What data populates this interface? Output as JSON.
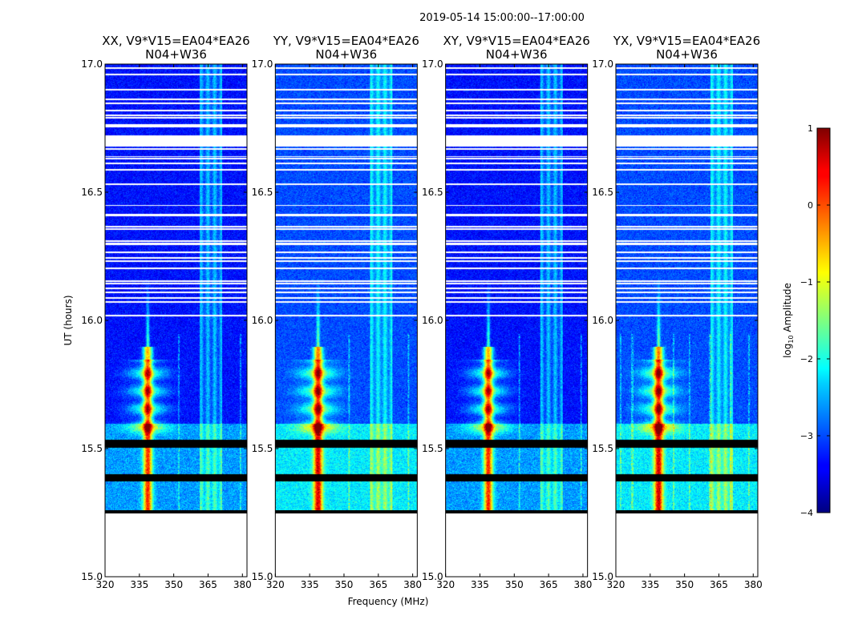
{
  "figure": {
    "suptitle": "2019-05-14  15:00:00--17:00:00",
    "xlabel": "Frequency (MHz)",
    "ylabel": "UT (hours)",
    "colorbar": {
      "label_prefix": "log",
      "label_sub": "10",
      "label_suffix": " Amplitude",
      "ticks": [
        {
          "value": 1,
          "label": "1"
        },
        {
          "value": 0,
          "label": "0"
        },
        {
          "value": -1,
          "label": "−1"
        },
        {
          "value": -2,
          "label": "−2"
        },
        {
          "value": -3,
          "label": "−3"
        },
        {
          "value": -4,
          "label": "−4"
        }
      ],
      "range": [
        -4,
        1
      ],
      "colormap": "jet"
    }
  },
  "chart_data": [
    {
      "type": "heatmap",
      "pol": "XX",
      "title_line1": "XX, V9*V15=EA04*EA26",
      "title_line2": "N04+W36",
      "xlim": [
        320,
        382
      ],
      "ylim": [
        15.0,
        17.0
      ],
      "xticks": [
        {
          "value": 320,
          "label": "320"
        },
        {
          "value": 335,
          "label": "335"
        },
        {
          "value": 350,
          "label": "350"
        },
        {
          "value": 365,
          "label": "365"
        },
        {
          "value": 380,
          "label": "380"
        }
      ],
      "yticks": [
        {
          "value": 15.0,
          "label": "15.0"
        },
        {
          "value": 15.5,
          "label": "15.5"
        },
        {
          "value": 16.0,
          "label": "16.0"
        },
        {
          "value": 16.5,
          "label": "16.5"
        },
        {
          "value": 17.0,
          "label": "17.0"
        }
      ],
      "data_start_ut": 15.26,
      "background_log_amp": -3.3,
      "rfi_band_mhz": [
        361,
        371
      ],
      "strong_rfi_mhz": 338.5,
      "minor_rfi_mhz": [
        352,
        379
      ],
      "lower_section_log_amp": -2.6,
      "flagged_ut_ranges": [
        [
          15.375,
          15.4
        ],
        [
          15.505,
          15.535
        ]
      ]
    },
    {
      "type": "heatmap",
      "pol": "YY",
      "title_line1": "YY, V9*V15=EA04*EA26",
      "title_line2": "N04+W36",
      "xlim": [
        320,
        382
      ],
      "ylim": [
        15.0,
        17.0
      ],
      "xticks": [
        {
          "value": 320,
          "label": "320"
        },
        {
          "value": 335,
          "label": "335"
        },
        {
          "value": 350,
          "label": "350"
        },
        {
          "value": 365,
          "label": "365"
        },
        {
          "value": 380,
          "label": "380"
        }
      ],
      "yticks": [
        {
          "value": 15.0,
          "label": "15.0"
        },
        {
          "value": 15.5,
          "label": "15.5"
        },
        {
          "value": 16.0,
          "label": "16.0"
        },
        {
          "value": 16.5,
          "label": "16.5"
        },
        {
          "value": 17.0,
          "label": "17.0"
        }
      ],
      "data_start_ut": 15.26,
      "background_log_amp": -3.0,
      "rfi_band_mhz": [
        361,
        371
      ],
      "strong_rfi_mhz": 338.5,
      "minor_rfi_mhz": [
        352,
        378
      ],
      "lower_section_log_amp": -2.2,
      "flagged_ut_ranges": [
        [
          15.375,
          15.4
        ],
        [
          15.505,
          15.535
        ]
      ]
    },
    {
      "type": "heatmap",
      "pol": "XY",
      "title_line1": "XY, V9*V15=EA04*EA26",
      "title_line2": "N04+W36",
      "xlim": [
        320,
        382
      ],
      "ylim": [
        15.0,
        17.0
      ],
      "xticks": [
        {
          "value": 320,
          "label": "320"
        },
        {
          "value": 335,
          "label": "335"
        },
        {
          "value": 350,
          "label": "350"
        },
        {
          "value": 365,
          "label": "365"
        },
        {
          "value": 380,
          "label": "380"
        }
      ],
      "yticks": [
        {
          "value": 15.0,
          "label": "15.0"
        },
        {
          "value": 15.5,
          "label": "15.5"
        },
        {
          "value": 16.0,
          "label": "16.0"
        },
        {
          "value": 16.5,
          "label": "16.5"
        },
        {
          "value": 17.0,
          "label": "17.0"
        }
      ],
      "data_start_ut": 15.26,
      "background_log_amp": -3.3,
      "rfi_band_mhz": [
        361,
        371
      ],
      "strong_rfi_mhz": 338.5,
      "minor_rfi_mhz": [
        352,
        379
      ],
      "lower_section_log_amp": -2.6,
      "flagged_ut_ranges": [
        [
          15.375,
          15.4
        ],
        [
          15.505,
          15.535
        ]
      ]
    },
    {
      "type": "heatmap",
      "pol": "YX",
      "title_line1": "YX, V9*V15=EA04*EA26",
      "title_line2": "N04+W36",
      "xlim": [
        320,
        382
      ],
      "ylim": [
        15.0,
        17.0
      ],
      "xticks": [
        {
          "value": 320,
          "label": "320"
        },
        {
          "value": 335,
          "label": "335"
        },
        {
          "value": 350,
          "label": "350"
        },
        {
          "value": 365,
          "label": "365"
        },
        {
          "value": 380,
          "label": "380"
        }
      ],
      "yticks": [
        {
          "value": 15.0,
          "label": "15.0"
        },
        {
          "value": 15.5,
          "label": "15.5"
        },
        {
          "value": 16.0,
          "label": "16.0"
        },
        {
          "value": 16.5,
          "label": "16.5"
        },
        {
          "value": 17.0,
          "label": "17.0"
        }
      ],
      "data_start_ut": 15.26,
      "background_log_amp": -3.0,
      "rfi_band_mhz": [
        361,
        371
      ],
      "strong_rfi_mhz": 338.5,
      "minor_rfi_mhz": [
        322,
        327,
        345,
        352,
        361,
        370,
        378
      ],
      "lower_section_log_amp": -2.2,
      "flagged_ut_ranges": [
        [
          15.375,
          15.4
        ],
        [
          15.505,
          15.535
        ]
      ]
    }
  ]
}
